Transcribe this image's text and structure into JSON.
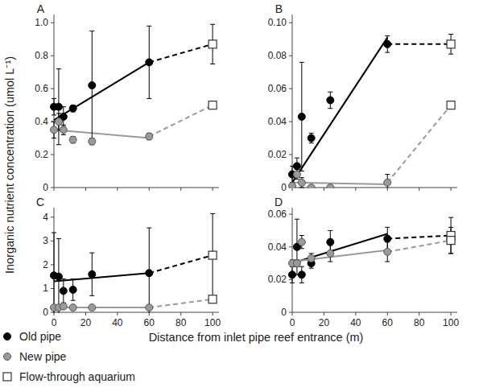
{
  "figure": {
    "y_label": "Inorganic nutrient concentration (umol L⁻¹)",
    "x_label": "Distance from inlet pipe reef entrance (m)"
  },
  "chart_data": [
    {
      "type": "line",
      "title": "A",
      "xlim": [
        0,
        104
      ],
      "xticks": [
        0,
        20,
        40,
        60,
        80,
        100
      ],
      "ylim": [
        0,
        1.05
      ],
      "yticks": [
        0,
        0.2,
        0.4,
        0.6,
        0.8,
        {
          "value": 1,
          "label": "1.0"
        }
      ],
      "tick_labels": "y",
      "series": [
        {
          "name": "Old pipe",
          "color": "#000000",
          "marker": "circle",
          "line_style": "solid",
          "x": [
            0,
            3,
            6,
            12,
            24,
            60
          ],
          "values": [
            0.49,
            0.49,
            0.43,
            0.48,
            0.62,
            0.76
          ],
          "errors": [
            0.05,
            0.23,
            0.06,
            0.02,
            0.33,
            0.22
          ],
          "trend": [
            0.41,
            0.76
          ]
        },
        {
          "name": "New pipe",
          "color": "#9a9a9a",
          "marker": "circle",
          "line_style": "solid",
          "x": [
            0,
            3,
            6,
            12,
            24,
            60
          ],
          "values": [
            0.35,
            0.4,
            0.35,
            0.29,
            0.28,
            0.31
          ],
          "errors": [
            0.05,
            0.05,
            0.03,
            0.02,
            0.02,
            0.02
          ],
          "trend": [
            0.35,
            0.3
          ]
        },
        {
          "name": "Flow-through aquarium",
          "color": "#ffffff",
          "marker": "square",
          "line_style": "dashed",
          "x": [
            100,
            100
          ],
          "values": [
            0.87,
            0.5
          ],
          "errors": [
            0.12,
            0.02
          ]
        }
      ]
    },
    {
      "type": "line",
      "title": "B",
      "xlim": [
        0,
        104
      ],
      "xticks": [
        0,
        20,
        40,
        60,
        80,
        100
      ],
      "ylim": [
        0,
        0.105
      ],
      "yticks": [
        0,
        {
          "value": 0.02,
          "label": "0.02"
        },
        {
          "value": 0.04,
          "label": "0.04"
        },
        {
          "value": 0.06,
          "label": "0.06"
        },
        {
          "value": 0.08,
          "label": "0.08"
        },
        {
          "value": 0.1,
          "label": "0.10"
        }
      ],
      "tick_labels": "y",
      "series": [
        {
          "name": "Old pipe",
          "color": "#000000",
          "marker": "circle",
          "line_style": "solid",
          "x": [
            0,
            3,
            6,
            12,
            24,
            60
          ],
          "values": [
            0.008,
            0.013,
            0.043,
            0.03,
            0.053,
            0.087
          ],
          "errors": [
            0.005,
            0.005,
            0.033,
            0.003,
            0.005,
            0.005
          ],
          "trend": [
            0.003,
            0.091
          ]
        },
        {
          "name": "New pipe",
          "color": "#9a9a9a",
          "marker": "circle",
          "line_style": "solid",
          "x": [
            0,
            3,
            6,
            12,
            24,
            60
          ],
          "values": [
            0.001,
            0.008,
            0.003,
            0.0,
            0.0,
            0.003
          ],
          "errors": [
            0.001,
            0.003,
            0.003,
            0.0,
            0.0,
            0.005
          ],
          "trend": [
            0.003,
            0.002
          ]
        },
        {
          "name": "Flow-through aquarium",
          "color": "#ffffff",
          "marker": "square",
          "line_style": "dashed",
          "x": [
            100,
            100
          ],
          "values": [
            0.087,
            0.05
          ],
          "errors": [
            0.006,
            0.001
          ]
        }
      ]
    },
    {
      "type": "line",
      "title": "C",
      "xlim": [
        0,
        104
      ],
      "xticks": [
        0,
        20,
        40,
        60,
        80,
        100
      ],
      "ylim": [
        0,
        4.4
      ],
      "yticks": [
        0,
        1,
        2,
        3,
        4
      ],
      "series": [
        {
          "name": "Old pipe",
          "color": "#000000",
          "marker": "circle",
          "line_style": "solid",
          "x": [
            0,
            3,
            6,
            12,
            24,
            60
          ],
          "values": [
            1.55,
            1.5,
            0.9,
            0.95,
            1.6,
            1.65
          ],
          "errors": [
            1.8,
            1.6,
            0.5,
            0.45,
            0.9,
            1.9
          ],
          "trend": [
            1.3,
            1.65
          ]
        },
        {
          "name": "New pipe",
          "color": "#9a9a9a",
          "marker": "circle",
          "line_style": "solid",
          "x": [
            0,
            3,
            6,
            12,
            24,
            60
          ],
          "values": [
            0.2,
            0.2,
            0.25,
            0.2,
            0.2,
            0.2
          ],
          "errors": [
            0.05,
            0.05,
            0.05,
            0.05,
            0.05,
            0.05
          ],
          "trend": [
            0.2,
            0.2
          ]
        },
        {
          "name": "Flow-through aquarium",
          "color": "#ffffff",
          "marker": "square",
          "line_style": "dashed",
          "x": [
            100,
            100
          ],
          "values": [
            2.4,
            0.55
          ],
          "errors": [
            1.75,
            0.1
          ]
        }
      ]
    },
    {
      "type": "line",
      "title": "D",
      "xlim": [
        0,
        104
      ],
      "xticks": [
        0,
        20,
        40,
        60,
        80,
        100
      ],
      "ylim": [
        0,
        0.064
      ],
      "yticks": [
        0,
        {
          "value": 0.02,
          "label": "0.02"
        },
        {
          "value": 0.04,
          "label": "0.04"
        },
        {
          "value": 0.06,
          "label": "0.06"
        }
      ],
      "series": [
        {
          "name": "Old pipe",
          "color": "#000000",
          "marker": "circle",
          "line_style": "solid",
          "x": [
            0,
            3,
            6,
            12,
            24,
            60
          ],
          "values": [
            0.023,
            0.04,
            0.023,
            0.03,
            0.043,
            0.045
          ],
          "errors": [
            0.005,
            0.017,
            0.005,
            0.003,
            0.007,
            0.007
          ],
          "trend": [
            0.03,
            0.048
          ]
        },
        {
          "name": "New pipe",
          "color": "#9a9a9a",
          "marker": "circle",
          "line_style": "solid",
          "x": [
            0,
            3,
            6,
            12,
            24,
            60
          ],
          "values": [
            0.03,
            0.03,
            0.043,
            0.033,
            0.036,
            0.037
          ],
          "errors": [
            0.002,
            0.002,
            0.004,
            0.003,
            0.005,
            0.006
          ],
          "trend": [
            0.031,
            0.038
          ]
        },
        {
          "name": "Flow-through aquarium",
          "color": "#ffffff",
          "marker": "square",
          "line_style": "dashed",
          "x": [
            100,
            100
          ],
          "values": [
            0.047,
            0.044
          ],
          "errors": [
            0.011,
            0.008
          ]
        }
      ]
    }
  ]
}
